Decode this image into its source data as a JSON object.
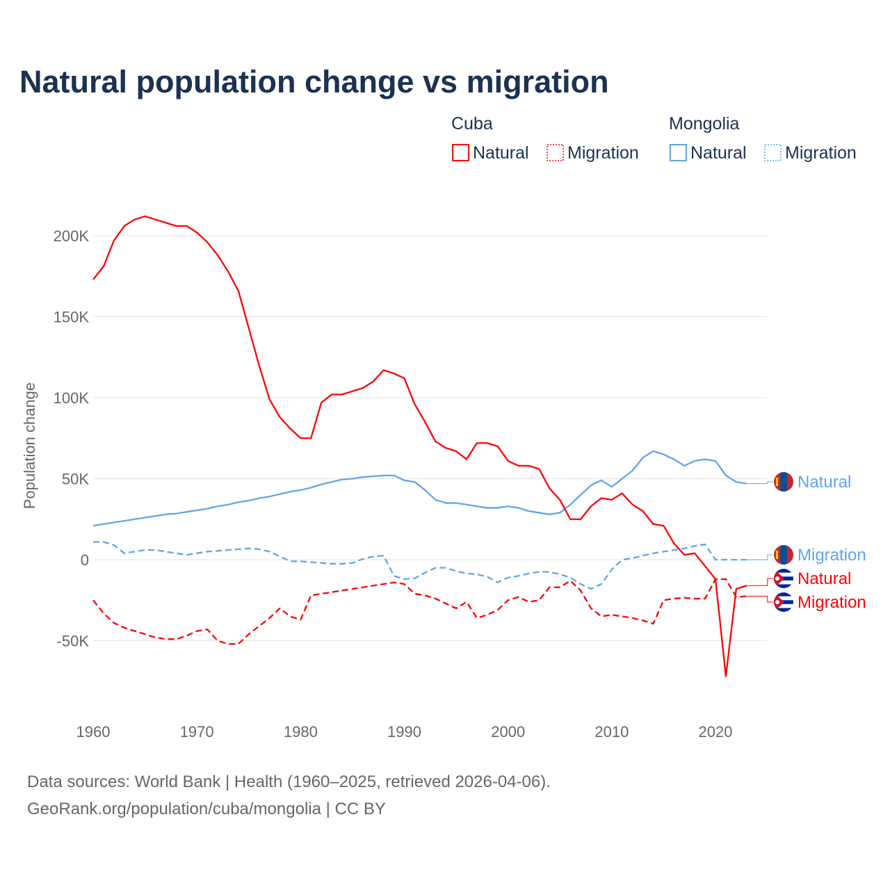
{
  "chart_data": {
    "type": "line",
    "title": "Natural population change vs migration",
    "xlabel": "",
    "ylabel": "Population change",
    "xlim": [
      1960,
      2025
    ],
    "ylim": [
      -80000,
      230000
    ],
    "x_ticks": [
      "1960",
      "1970",
      "1980",
      "1990",
      "2000",
      "2010",
      "2020"
    ],
    "x_tick_values": [
      1960,
      1970,
      1980,
      1990,
      2000,
      2010,
      2020
    ],
    "y_ticks": [
      "-50K",
      "0",
      "50K",
      "100K",
      "150K",
      "200K"
    ],
    "y_tick_values": [
      -50000,
      0,
      50000,
      100000,
      150000,
      200000
    ],
    "grid": true,
    "legend_position": "top-right",
    "legend": {
      "groups": [
        {
          "country": "Cuba",
          "items": [
            "Natural",
            "Migration"
          ]
        },
        {
          "country": "Mongolia",
          "items": [
            "Natural",
            "Migration"
          ]
        }
      ]
    },
    "x_start": 1960,
    "series": [
      {
        "name": "Cuba Natural",
        "country": "Cuba",
        "kind": "Natural",
        "color": "#ff0000",
        "dash": false,
        "end_label": "Natural",
        "values_k": [
          173,
          181,
          197,
          206,
          210,
          212,
          210,
          208,
          206,
          206,
          202,
          196,
          188,
          178,
          166,
          143,
          120,
          99,
          88,
          81,
          75,
          75,
          97,
          102,
          102,
          104,
          106,
          110,
          117,
          115,
          112,
          96,
          85,
          73,
          69,
          67,
          62,
          72,
          72,
          70,
          61,
          58,
          58,
          56,
          44,
          37,
          25,
          25,
          33,
          38,
          37,
          41,
          34,
          30,
          22,
          21,
          10,
          3,
          4,
          -4,
          -12,
          -72,
          -18,
          -16
        ]
      },
      {
        "name": "Cuba Migration",
        "country": "Cuba",
        "kind": "Migration",
        "color": "#ff0000",
        "dash": true,
        "end_label": "Migration",
        "values_k": [
          -25,
          -33,
          -39,
          -42,
          -44,
          -46,
          -48,
          -49,
          -49,
          -47,
          -44,
          -43,
          -50,
          -52,
          -52,
          -46,
          -41,
          -36,
          -30,
          -35,
          -37,
          -22,
          -21,
          -20,
          -19,
          -18,
          -17,
          -16,
          -15,
          -14,
          -15,
          -21,
          -22,
          -24,
          -27,
          -30,
          -26,
          -36,
          -34,
          -31,
          -25,
          -23,
          -26,
          -25,
          -17,
          -17,
          -13,
          -19,
          -30,
          -35,
          -34,
          -35,
          -36,
          -37.5,
          -39.5,
          -25,
          -24,
          -23.5,
          -24,
          -24,
          -12,
          -12,
          -23,
          -22.5
        ]
      },
      {
        "name": "Mongolia Natural",
        "country": "Mongolia",
        "kind": "Natural",
        "color": "#5ea5ea",
        "dash": false,
        "end_label": "Natural",
        "values_k": [
          21,
          22,
          23,
          24,
          25,
          26,
          27,
          28,
          28.5,
          29.5,
          30.5,
          31.5,
          33,
          34,
          35.5,
          36.5,
          38,
          39,
          40.5,
          42,
          43,
          44.5,
          46.5,
          48,
          49.5,
          50,
          51,
          51.5,
          52,
          52,
          49,
          48,
          43,
          37,
          35,
          35,
          34,
          33,
          32,
          32,
          33,
          32,
          30,
          29,
          28,
          29,
          34,
          40,
          46,
          49,
          45,
          50,
          55,
          63,
          67,
          65,
          62,
          58,
          61,
          62,
          61,
          52,
          48,
          47
        ]
      },
      {
        "name": "Mongolia Migration",
        "country": "Mongolia",
        "kind": "Migration",
        "color": "#5ea5ea",
        "dash": true,
        "end_label": "Migration",
        "values_k": [
          11,
          11,
          9,
          4,
          5,
          6,
          6,
          5,
          4,
          3,
          4,
          5,
          5.5,
          6,
          6.5,
          7,
          6.5,
          5,
          2,
          -1,
          -1,
          -1.5,
          -2,
          -2.5,
          -2.5,
          -2,
          0.5,
          2,
          2.5,
          -10,
          -12,
          -11.5,
          -8,
          -5,
          -5,
          -7,
          -8.5,
          -9,
          -10.5,
          -14,
          -11,
          -10,
          -8.5,
          -7.5,
          -7.5,
          -9,
          -11,
          -15,
          -18,
          -15,
          -6,
          0,
          1,
          2.5,
          4,
          5,
          6,
          7,
          8.5,
          9.5,
          0,
          0,
          0,
          0
        ]
      }
    ]
  },
  "footer": {
    "line1": "Data sources: World Bank | Health (1960–2025, retrieved 2026-04-06).",
    "line2": "GeoRank.org/population/cuba/mongolia | CC BY"
  }
}
